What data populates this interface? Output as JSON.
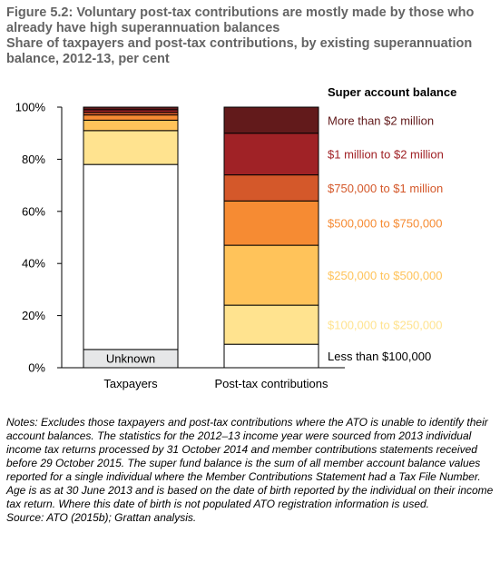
{
  "figure": {
    "title": "Figure 5.2: Voluntary post-tax contributions are mostly made by those who already have high superannuation balances",
    "subtitle": "Share of taxpayers and post-tax contributions, by existing superannuation balance, 2012-13, per cent",
    "notes": "Notes: Excludes those taxpayers and post-tax contributions where the ATO is unable to identify their account balances. The statistics for the 2012–13 income year were sourced from 2013 individual income tax returns processed by 31 October 2014 and member contributions statements received before 29 October 2015. The super fund balance is the sum of all member account balance values reported for a single individual where the Member Contributions Statement had a Tax File Number. Age is as at 30 June 2013 and is based on the date of birth reported by the individual on their income tax return. Where this date of birth is not populated ATO registration information is used.",
    "source": "Source: ATO (2015b); Grattan analysis."
  },
  "chart_data": {
    "type": "bar",
    "stacked": true,
    "categories": [
      "Taxpayers",
      "Post-tax contributions"
    ],
    "ylim": [
      0,
      100
    ],
    "yticks": [
      "0%",
      "20%",
      "40%",
      "60%",
      "80%",
      "100%"
    ],
    "legend_title": "Super account balance",
    "legend_placement": "right",
    "grid": false,
    "series": [
      {
        "name": "Unknown",
        "color": "#e6e7e8",
        "values": [
          7,
          0
        ]
      },
      {
        "name": "Less than $100,000",
        "color": "#ffffff",
        "values": [
          71,
          9
        ]
      },
      {
        "name": "$100,000 to $250,000",
        "color": "#ffe38f",
        "values": [
          13,
          15
        ]
      },
      {
        "name": "$250,000 to $500,000",
        "color": "#ffc35a",
        "values": [
          4,
          23
        ]
      },
      {
        "name": "$500,000 to $750,000",
        "color": "#f68b33",
        "values": [
          2,
          17
        ]
      },
      {
        "name": "$750,000 to $1 million",
        "color": "#d4582a",
        "values": [
          1,
          10
        ]
      },
      {
        "name": "$1 million to $2 million",
        "color": "#a02226",
        "values": [
          1,
          16
        ]
      },
      {
        "name": "More than $2 million",
        "color": "#621a1b",
        "values": [
          1,
          10
        ]
      }
    ],
    "label_colors": [
      "#000000",
      "#000000",
      "#ffe38f",
      "#ffc35a",
      "#f68b33",
      "#d4582a",
      "#a02226",
      "#621a1b"
    ]
  }
}
